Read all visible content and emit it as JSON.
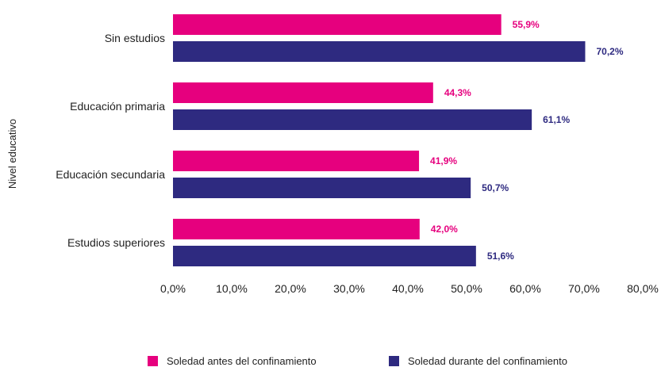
{
  "chart_data": {
    "type": "bar",
    "orientation": "horizontal",
    "categories": [
      "Sin estudios",
      "Educación primaria",
      "Educación secundaria",
      "Estudios superiores"
    ],
    "series": [
      {
        "name": "Soledad antes del confinamiento",
        "color": "#e6007e",
        "values": [
          55.9,
          44.3,
          41.9,
          42.0
        ],
        "labels": [
          "55,9%",
          "44,3%",
          "41,9%",
          "42,0%"
        ]
      },
      {
        "name": "Soledad durante del confinamiento",
        "color": "#2e2a80",
        "values": [
          70.2,
          61.1,
          50.7,
          51.6
        ],
        "labels": [
          "70,2%",
          "61,1%",
          "50,7%",
          "51,6%"
        ]
      }
    ],
    "xlim": [
      0,
      80
    ],
    "xticks": [
      0,
      10,
      20,
      30,
      40,
      50,
      60,
      70,
      80
    ],
    "xtick_labels": [
      "0,0%",
      "10,0%",
      "20,0%",
      "30,0%",
      "40,0%",
      "50,0%",
      "60,0%",
      "70,0%",
      "80,0%"
    ],
    "ylabel": "Nivel educativo",
    "xlabel": "",
    "grid": false,
    "legend_position": "bottom"
  }
}
